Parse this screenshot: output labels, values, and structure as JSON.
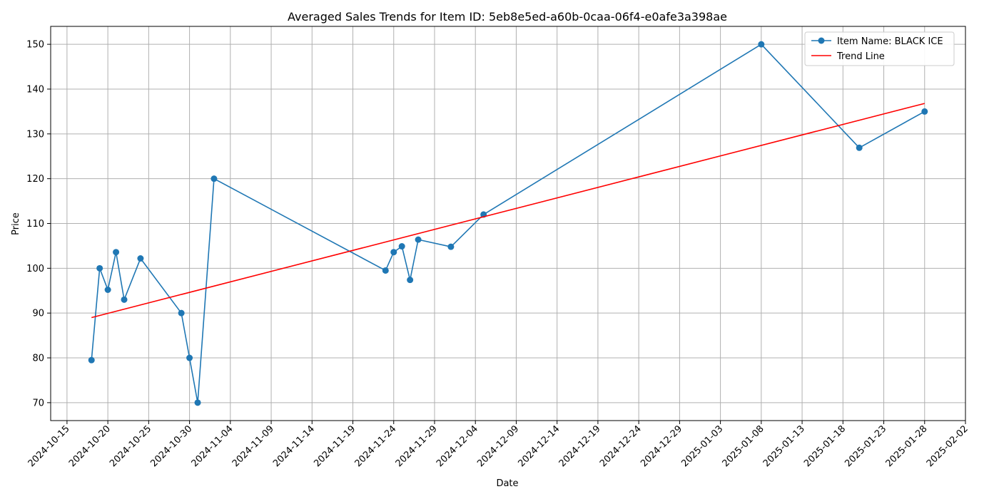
{
  "chart_data": {
    "type": "line",
    "title": "Averaged Sales Trends for Item ID: 5eb8e5ed-a60b-0caa-06f4-e0afe3a398ae",
    "xlabel": "Date",
    "ylabel": "Price",
    "x_axis": "date",
    "xlim": [
      "2024-10-13",
      "2025-02-02"
    ],
    "ylim": [
      66,
      154
    ],
    "grid": true,
    "legend_position": "top-right",
    "x_ticks": [
      "2024-10-15",
      "2024-10-20",
      "2024-10-25",
      "2024-10-30",
      "2024-11-04",
      "2024-11-09",
      "2024-11-14",
      "2024-11-19",
      "2024-11-24",
      "2024-11-29",
      "2024-12-04",
      "2024-12-09",
      "2024-12-14",
      "2024-12-19",
      "2024-12-24",
      "2024-12-29",
      "2025-01-03",
      "2025-01-08",
      "2025-01-13",
      "2025-01-18",
      "2025-01-23",
      "2025-01-28",
      "2025-02-02"
    ],
    "y_ticks": [
      70,
      80,
      90,
      100,
      110,
      120,
      130,
      140,
      150
    ],
    "series": [
      {
        "name": "Item Name: BLACK ICE",
        "color": "#1f77b4",
        "marker": "circle",
        "points": [
          {
            "x": "2024-10-18",
            "y": 79.5
          },
          {
            "x": "2024-10-19",
            "y": 100.0
          },
          {
            "x": "2024-10-20",
            "y": 95.2
          },
          {
            "x": "2024-10-21",
            "y": 103.6
          },
          {
            "x": "2024-10-22",
            "y": 93.0
          },
          {
            "x": "2024-10-24",
            "y": 102.2
          },
          {
            "x": "2024-10-29",
            "y": 90.0
          },
          {
            "x": "2024-10-30",
            "y": 80.0
          },
          {
            "x": "2024-10-31",
            "y": 70.0
          },
          {
            "x": "2024-11-02",
            "y": 120.0
          },
          {
            "x": "2024-11-23",
            "y": 99.5
          },
          {
            "x": "2024-11-24",
            "y": 103.6
          },
          {
            "x": "2024-11-25",
            "y": 104.9
          },
          {
            "x": "2024-11-26",
            "y": 97.4
          },
          {
            "x": "2024-11-27",
            "y": 106.4
          },
          {
            "x": "2024-12-01",
            "y": 104.8
          },
          {
            "x": "2024-12-05",
            "y": 112.0
          },
          {
            "x": "2025-01-08",
            "y": 150.0
          },
          {
            "x": "2025-01-20",
            "y": 126.9
          },
          {
            "x": "2025-01-28",
            "y": 135.0
          }
        ]
      },
      {
        "name": "Trend Line",
        "color": "#ff0000",
        "marker": "none",
        "points": [
          {
            "x": "2024-10-18",
            "y": 89.0
          },
          {
            "x": "2025-01-28",
            "y": 136.8
          }
        ]
      }
    ]
  }
}
